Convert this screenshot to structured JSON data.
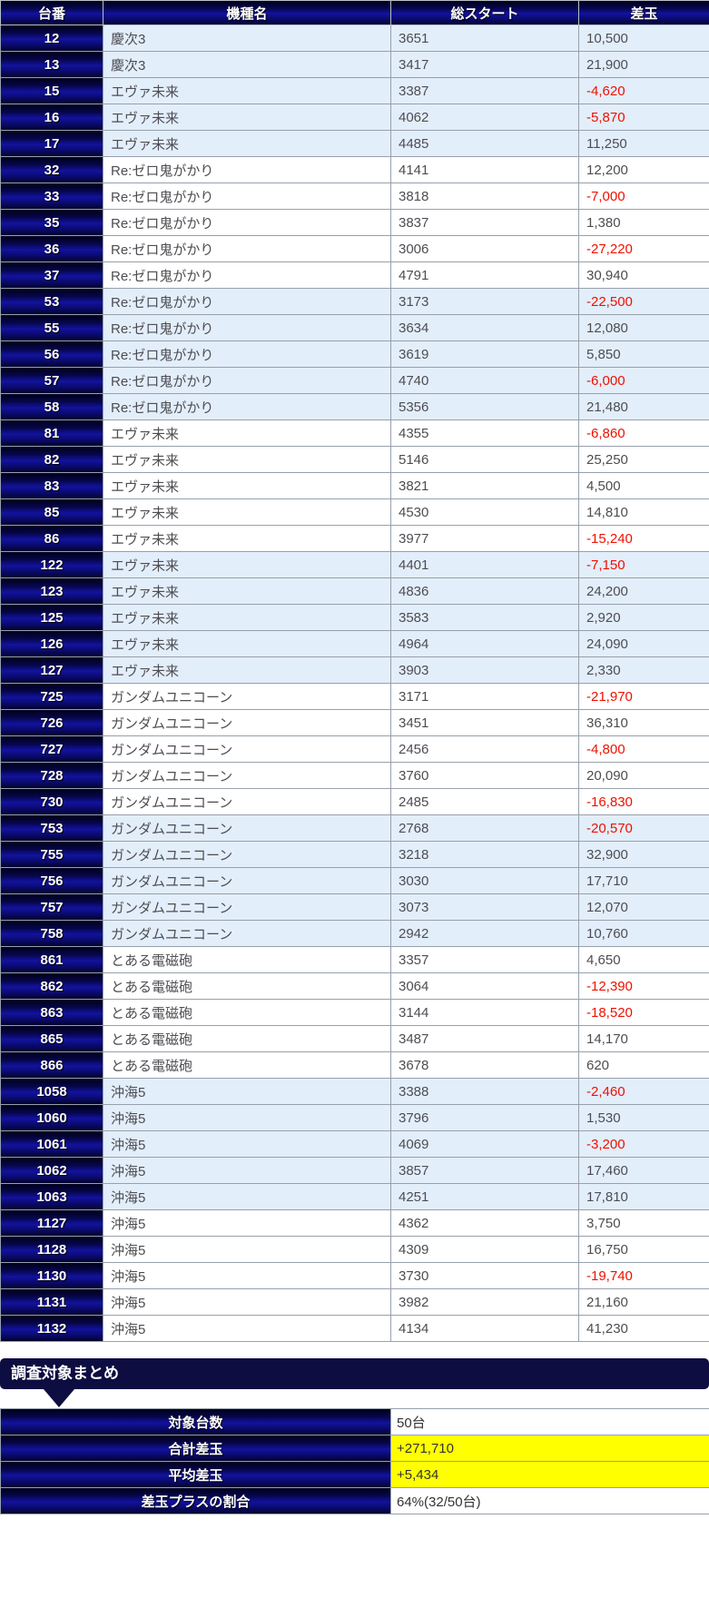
{
  "table": {
    "headers": [
      "台番",
      "機種名",
      "総スタート",
      "差玉"
    ],
    "rows": [
      [
        "12",
        "慶次3",
        "3651",
        "10,500"
      ],
      [
        "13",
        "慶次3",
        "3417",
        "21,900"
      ],
      [
        "15",
        "エヴァ未来",
        "3387",
        "-4,620"
      ],
      [
        "16",
        "エヴァ未来",
        "4062",
        "-5,870"
      ],
      [
        "17",
        "エヴァ未来",
        "4485",
        "11,250"
      ],
      [
        "32",
        "Re:ゼロ鬼がかり",
        "4141",
        "12,200"
      ],
      [
        "33",
        "Re:ゼロ鬼がかり",
        "3818",
        "-7,000"
      ],
      [
        "35",
        "Re:ゼロ鬼がかり",
        "3837",
        "1,380"
      ],
      [
        "36",
        "Re:ゼロ鬼がかり",
        "3006",
        "-27,220"
      ],
      [
        "37",
        "Re:ゼロ鬼がかり",
        "4791",
        "30,940"
      ],
      [
        "53",
        "Re:ゼロ鬼がかり",
        "3173",
        "-22,500"
      ],
      [
        "55",
        "Re:ゼロ鬼がかり",
        "3634",
        "12,080"
      ],
      [
        "56",
        "Re:ゼロ鬼がかり",
        "3619",
        "5,850"
      ],
      [
        "57",
        "Re:ゼロ鬼がかり",
        "4740",
        "-6,000"
      ],
      [
        "58",
        "Re:ゼロ鬼がかり",
        "5356",
        "21,480"
      ],
      [
        "81",
        "エヴァ未来",
        "4355",
        "-6,860"
      ],
      [
        "82",
        "エヴァ未来",
        "5146",
        "25,250"
      ],
      [
        "83",
        "エヴァ未来",
        "3821",
        "4,500"
      ],
      [
        "85",
        "エヴァ未来",
        "4530",
        "14,810"
      ],
      [
        "86",
        "エヴァ未来",
        "3977",
        "-15,240"
      ],
      [
        "122",
        "エヴァ未来",
        "4401",
        "-7,150"
      ],
      [
        "123",
        "エヴァ未来",
        "4836",
        "24,200"
      ],
      [
        "125",
        "エヴァ未来",
        "3583",
        "2,920"
      ],
      [
        "126",
        "エヴァ未来",
        "4964",
        "24,090"
      ],
      [
        "127",
        "エヴァ未来",
        "3903",
        "2,330"
      ],
      [
        "725",
        "ガンダムユニコーン",
        "3171",
        "-21,970"
      ],
      [
        "726",
        "ガンダムユニコーン",
        "3451",
        "36,310"
      ],
      [
        "727",
        "ガンダムユニコーン",
        "2456",
        "-4,800"
      ],
      [
        "728",
        "ガンダムユニコーン",
        "3760",
        "20,090"
      ],
      [
        "730",
        "ガンダムユニコーン",
        "2485",
        "-16,830"
      ],
      [
        "753",
        "ガンダムユニコーン",
        "2768",
        "-20,570"
      ],
      [
        "755",
        "ガンダムユニコーン",
        "3218",
        "32,900"
      ],
      [
        "756",
        "ガンダムユニコーン",
        "3030",
        "17,710"
      ],
      [
        "757",
        "ガンダムユニコーン",
        "3073",
        "12,070"
      ],
      [
        "758",
        "ガンダムユニコーン",
        "2942",
        "10,760"
      ],
      [
        "861",
        "とある電磁砲",
        "3357",
        "4,650"
      ],
      [
        "862",
        "とある電磁砲",
        "3064",
        "-12,390"
      ],
      [
        "863",
        "とある電磁砲",
        "3144",
        "-18,520"
      ],
      [
        "865",
        "とある電磁砲",
        "3487",
        "14,170"
      ],
      [
        "866",
        "とある電磁砲",
        "3678",
        "620"
      ],
      [
        "1058",
        "沖海5",
        "3388",
        "-2,460"
      ],
      [
        "1060",
        "沖海5",
        "3796",
        "1,530"
      ],
      [
        "1061",
        "沖海5",
        "4069",
        "-3,200"
      ],
      [
        "1062",
        "沖海5",
        "3857",
        "17,460"
      ],
      [
        "1063",
        "沖海5",
        "4251",
        "17,810"
      ],
      [
        "1127",
        "沖海5",
        "4362",
        "3,750"
      ],
      [
        "1128",
        "沖海5",
        "4309",
        "16,750"
      ],
      [
        "1130",
        "沖海5",
        "3730",
        "-19,740"
      ],
      [
        "1131",
        "沖海5",
        "3982",
        "21,160"
      ],
      [
        "1132",
        "沖海5",
        "4134",
        "41,230"
      ]
    ]
  },
  "summary": {
    "title": "調査対象まとめ",
    "rows": [
      {
        "label": "対象台数",
        "value": "50台",
        "highlight": false
      },
      {
        "label": "合計差玉",
        "value": "+271,710",
        "highlight": true
      },
      {
        "label": "平均差玉",
        "value": "+5,434",
        "highlight": true
      },
      {
        "label": "差玉プラスの割合",
        "value": "64%(32/50台)",
        "highlight": false
      }
    ]
  },
  "colors": {
    "header_navy": "#0d0d42",
    "row_alt_blue": "#e3eefb",
    "negative_red": "#ee1100",
    "highlight_yellow": "#ffff00"
  }
}
